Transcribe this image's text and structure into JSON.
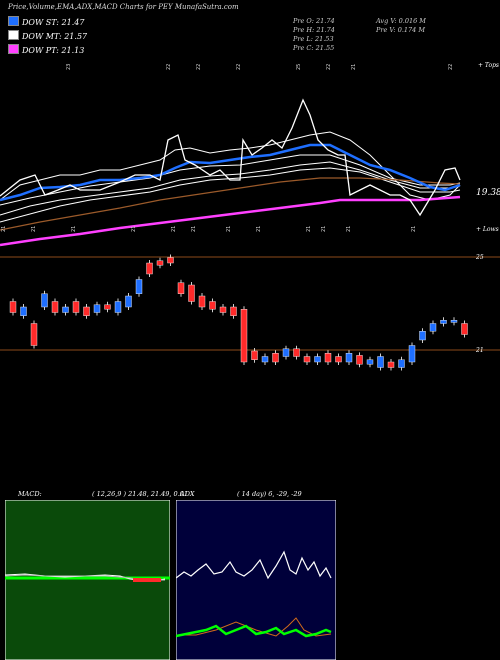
{
  "header": {
    "title": "Price,Volume,EMA,ADX,MACD Charts for PEY MunafaSutra.com"
  },
  "legend": [
    {
      "label": "DOW ST: 21.47",
      "color": "#1f6fff"
    },
    {
      "label": "DOW MT: 21.57",
      "color": "#ffffff"
    },
    {
      "label": "DOW PT: 21.13",
      "color": "#ff40ff"
    }
  ],
  "ohlc": {
    "open": "Pre  O: 21.74",
    "high": "Pre  H: 21.74",
    "low": "Pre  L: 21.53",
    "close": "Pre  C: 21.55",
    "avg_vol": "Avg V: 0.016  M",
    "pre_vol": "Pre  V: 0.174  M"
  },
  "price_panel": {
    "top_label": "+ Tops",
    "lows_label": "+ Lows",
    "last_price_label": "19.38",
    "top_dates": [
      "23",
      "22",
      "22",
      "22",
      "25",
      "22",
      "21",
      "22"
    ],
    "low_dates": [
      "21",
      "21",
      "21",
      "21",
      "21",
      "21",
      "21",
      "21",
      "21",
      "21",
      "21",
      "21"
    ]
  },
  "candle_panel": {
    "upper_label": "25",
    "lower_label": "21"
  },
  "colors": {
    "up": "#1f6fff",
    "down": "#ff2a2a",
    "ema_white": "#ffffff",
    "ema_brown": "#9b5a2a",
    "ema_magenta": "#ff40ff",
    "macd_bg": "#0a4a0a",
    "adx_bg": "#00003a"
  },
  "macd": {
    "label": "MACD:",
    "params": "( 12,26,9 ) 21.48,  21.49,  0.01"
  },
  "adx": {
    "label": "ADX",
    "params": "( 14  day) 6,  -29,  -29"
  },
  "chart_data": [
    {
      "type": "candlestick",
      "title": "Price,Volume,EMA,ADX,MACD Charts for PEY MunafaSutra.com",
      "series": [
        {
          "name": "DOW ST",
          "value": 21.47
        },
        {
          "name": "DOW MT",
          "value": 21.57
        },
        {
          "name": "DOW PT",
          "value": 21.13
        }
      ],
      "candles": [
        [
          0,
          1,
          0.55,
          0.45
        ],
        [
          1,
          1,
          0.5,
          0.42
        ],
        [
          0,
          1,
          0.35,
          0.15
        ],
        [
          1,
          1,
          0.62,
          0.5
        ],
        [
          0,
          1,
          0.55,
          0.45
        ],
        [
          1,
          1,
          0.5,
          0.45
        ],
        [
          0,
          1,
          0.55,
          0.45
        ],
        [
          0,
          1,
          0.5,
          0.42
        ],
        [
          1,
          1,
          0.52,
          0.45
        ],
        [
          0,
          1,
          0.52,
          0.48
        ],
        [
          1,
          1,
          0.55,
          0.45
        ],
        [
          1,
          1,
          0.6,
          0.5
        ],
        [
          1,
          1,
          0.75,
          0.62
        ],
        [
          0,
          1,
          0.9,
          0.8
        ],
        [
          0,
          1,
          0.92,
          0.88
        ],
        [
          0,
          1,
          0.95,
          0.9
        ],
        [
          0,
          1,
          0.72,
          0.62
        ],
        [
          0,
          1,
          0.7,
          0.55
        ],
        [
          0,
          1,
          0.6,
          0.5
        ],
        [
          0,
          1,
          0.55,
          0.48
        ],
        [
          0,
          1,
          0.5,
          0.45
        ],
        [
          0,
          1,
          0.5,
          0.42
        ],
        [
          0,
          1,
          0.48,
          0.0
        ],
        [
          0,
          1,
          0.1,
          0.02
        ],
        [
          1,
          1,
          0.05,
          0.0
        ],
        [
          0,
          1,
          0.08,
          0.0
        ],
        [
          1,
          1,
          0.12,
          0.05
        ],
        [
          0,
          1,
          0.12,
          0.05
        ],
        [
          0,
          1,
          0.05,
          0.0
        ],
        [
          1,
          1,
          0.05,
          0.0
        ],
        [
          0,
          1,
          0.08,
          0.0
        ],
        [
          0,
          1,
          0.05,
          0.0
        ],
        [
          1,
          1,
          0.08,
          0.0
        ],
        [
          0,
          1,
          0.06,
          -0.02
        ],
        [
          1,
          1,
          0.02,
          -0.02
        ],
        [
          1,
          1,
          0.05,
          -0.05
        ],
        [
          0,
          1,
          0.0,
          -0.05
        ],
        [
          1,
          1,
          0.02,
          -0.05
        ],
        [
          1,
          1,
          0.15,
          0.0
        ],
        [
          1,
          1,
          0.28,
          0.2
        ],
        [
          1,
          1,
          0.35,
          0.28
        ],
        [
          1,
          1,
          0.38,
          0.35
        ],
        [
          1,
          1,
          0.38,
          0.36
        ],
        [
          0,
          1,
          0.35,
          0.25
        ]
      ]
    }
  ]
}
